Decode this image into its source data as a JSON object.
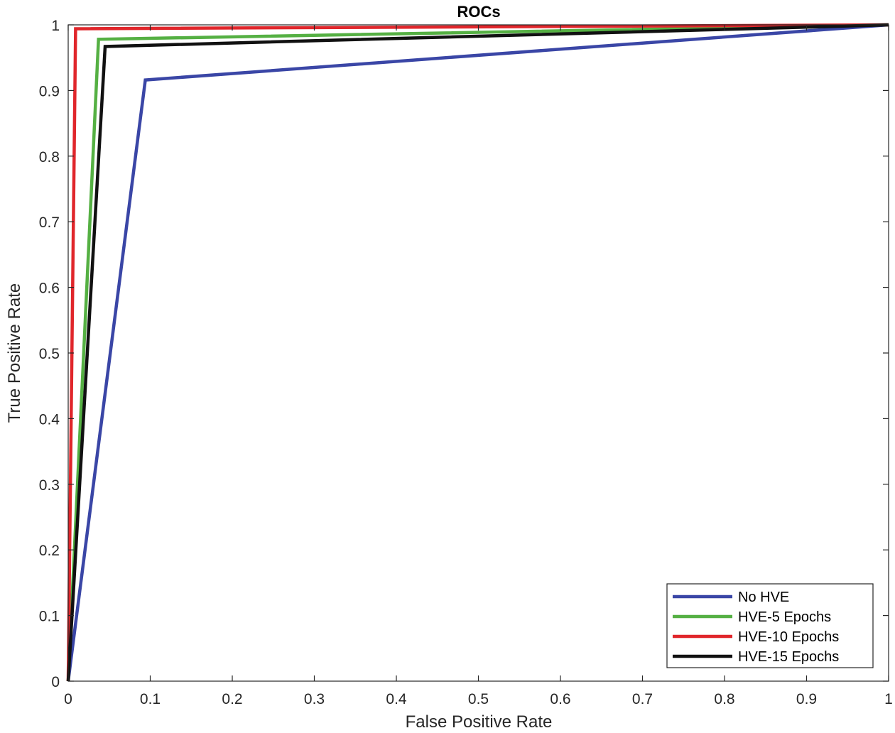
{
  "chart_data": {
    "type": "line",
    "title": "ROCs",
    "xlabel": "False Positive Rate",
    "ylabel": "True Positive Rate",
    "xlim": [
      0,
      1
    ],
    "ylim": [
      0,
      1
    ],
    "xticks": [
      "0",
      "0.1",
      "0.2",
      "0.3",
      "0.4",
      "0.5",
      "0.6",
      "0.7",
      "0.8",
      "0.9",
      "1"
    ],
    "yticks": [
      "0",
      "0.1",
      "0.2",
      "0.3",
      "0.4",
      "0.5",
      "0.6",
      "0.7",
      "0.8",
      "0.9",
      "1"
    ],
    "grid": false,
    "legend_position": "bottom-right",
    "series": [
      {
        "name": "No HVE",
        "color": "#3a46a6",
        "x": [
          0,
          0.094,
          1
        ],
        "y": [
          0,
          0.916,
          1
        ]
      },
      {
        "name": "HVE-5 Epochs",
        "color": "#55b043",
        "x": [
          0,
          0.037,
          1
        ],
        "y": [
          0,
          0.978,
          1
        ]
      },
      {
        "name": "HVE-10 Epochs",
        "color": "#e0262b",
        "x": [
          0,
          0.009,
          1
        ],
        "y": [
          0,
          0.994,
          1
        ]
      },
      {
        "name": "HVE-15 Epochs",
        "color": "#111111",
        "x": [
          0,
          0.045,
          1
        ],
        "y": [
          0,
          0.967,
          1
        ]
      }
    ]
  }
}
